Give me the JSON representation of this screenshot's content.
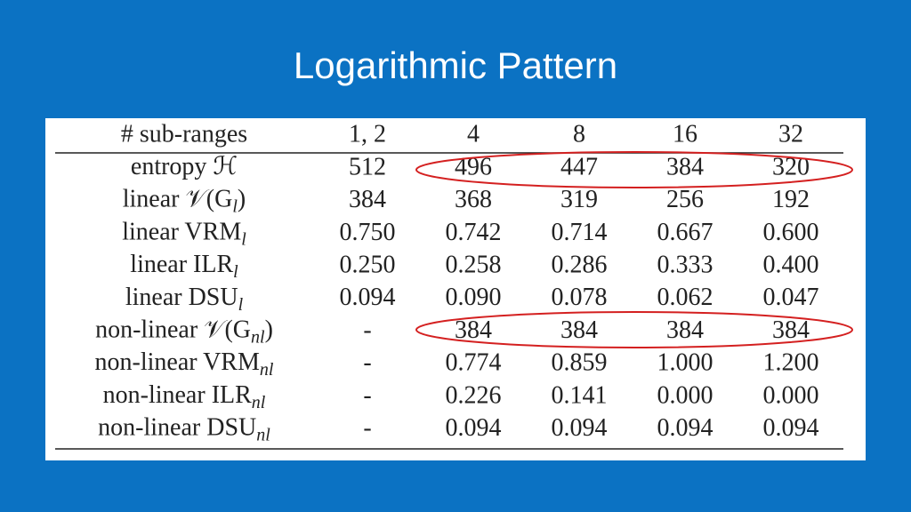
{
  "title": "Logarithmic Pattern",
  "table": {
    "header": [
      "# sub-ranges",
      "1, 2",
      "4",
      "8",
      "16",
      "32"
    ],
    "rows": [
      {
        "label": {
          "main": "entropy ℋ"
        },
        "cells": [
          "512",
          "496",
          "447",
          "384",
          "320"
        ]
      },
      {
        "label": {
          "main": "linear 𝒱(G",
          "sub": "l",
          "after": ")"
        },
        "cells": [
          "384",
          "368",
          "319",
          "256",
          "192"
        ]
      },
      {
        "label": {
          "main": "linear VRM",
          "sub": "l"
        },
        "cells": [
          "0.750",
          "0.742",
          "0.714",
          "0.667",
          "0.600"
        ]
      },
      {
        "label": {
          "main": "linear ILR",
          "sub": "l"
        },
        "cells": [
          "0.250",
          "0.258",
          "0.286",
          "0.333",
          "0.400"
        ]
      },
      {
        "label": {
          "main": "linear DSU",
          "sub": "l"
        },
        "cells": [
          "0.094",
          "0.090",
          "0.078",
          "0.062",
          "0.047"
        ]
      },
      {
        "label": {
          "main": "non-linear 𝒱(G",
          "sub": "nl",
          "after": ")"
        },
        "cells": [
          "-",
          "384",
          "384",
          "384",
          "384"
        ]
      },
      {
        "label": {
          "main": "non-linear VRM",
          "sub": "nl"
        },
        "cells": [
          "-",
          "0.774",
          "0.859",
          "1.000",
          "1.200"
        ]
      },
      {
        "label": {
          "main": "non-linear ILR",
          "sub": "nl"
        },
        "cells": [
          "-",
          "0.226",
          "0.141",
          "0.000",
          "0.000"
        ]
      },
      {
        "label": {
          "main": "non-linear DSU",
          "sub": "nl"
        },
        "cells": [
          "-",
          "0.094",
          "0.094",
          "0.094",
          "0.094"
        ]
      }
    ]
  }
}
